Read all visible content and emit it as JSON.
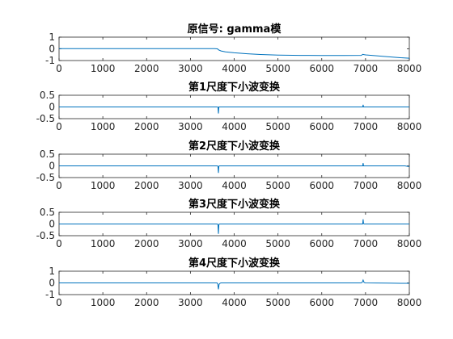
{
  "figure": {
    "line_color": "#0072BD",
    "background": "#ffffff"
  },
  "chart_data": [
    {
      "type": "line",
      "title": "原信号: gamma模",
      "xlim": [
        0,
        8000
      ],
      "ylim": [
        -1,
        1
      ],
      "xticks": [
        0,
        1000,
        2000,
        3000,
        4000,
        5000,
        6000,
        7000,
        8000
      ],
      "yticks": [
        -1,
        0,
        1
      ],
      "ytick_labels": [
        "-1",
        "0",
        "1"
      ],
      "grid": false,
      "series": [
        {
          "x": [
            1,
            500,
            1000,
            2000,
            3000,
            3550,
            3620,
            3640,
            3700,
            3800,
            4000,
            4300,
            4600,
            5000,
            5500,
            6000,
            6500,
            6900,
            6940,
            6960,
            7000,
            7200,
            7500,
            7800,
            8000
          ],
          "y": [
            0.02,
            0.02,
            0.02,
            0.02,
            0.02,
            0.02,
            0.0,
            -0.08,
            -0.18,
            -0.26,
            -0.34,
            -0.42,
            -0.48,
            -0.53,
            -0.56,
            -0.57,
            -0.57,
            -0.56,
            -0.47,
            -0.49,
            -0.52,
            -0.58,
            -0.67,
            -0.76,
            -0.8
          ]
        }
      ]
    },
    {
      "type": "line",
      "title": "第1尺度下小波变换",
      "xlim": [
        0,
        8000
      ],
      "ylim": [
        -0.5,
        0.5
      ],
      "xticks": [
        0,
        1000,
        2000,
        3000,
        4000,
        5000,
        6000,
        7000,
        8000
      ],
      "yticks": [
        -0.5,
        0,
        0.5
      ],
      "ytick_labels": [
        "-0.5",
        "0",
        "0.5"
      ],
      "grid": false,
      "series": [
        {
          "x": [
            1,
            3600,
            3620,
            3630,
            3640,
            3650,
            3660,
            6900,
            6935,
            6945,
            6955,
            6970,
            8000
          ],
          "y": [
            0,
            0,
            0,
            -0.02,
            -0.28,
            0,
            0,
            0,
            0,
            0.09,
            0,
            0,
            0
          ]
        }
      ]
    },
    {
      "type": "line",
      "title": "第2尺度下小波变换",
      "xlim": [
        0,
        8000
      ],
      "ylim": [
        -0.5,
        0.5
      ],
      "xticks": [
        0,
        1000,
        2000,
        3000,
        4000,
        5000,
        6000,
        7000,
        8000
      ],
      "yticks": [
        -0.5,
        0,
        0.5
      ],
      "ytick_labels": [
        "-0.5",
        "0",
        "0.5"
      ],
      "grid": false,
      "series": [
        {
          "x": [
            1,
            3600,
            3620,
            3630,
            3640,
            3650,
            3660,
            6900,
            6935,
            6945,
            6955,
            6970,
            7900,
            7960,
            8000
          ],
          "y": [
            0,
            0,
            0,
            -0.03,
            -0.3,
            -0.02,
            0,
            0,
            0,
            0.12,
            0,
            0,
            0,
            -0.02,
            -0.03
          ]
        }
      ]
    },
    {
      "type": "line",
      "title": "第3尺度下小波变换",
      "xlim": [
        0,
        8000
      ],
      "ylim": [
        -0.5,
        0.5
      ],
      "xticks": [
        0,
        1000,
        2000,
        3000,
        4000,
        5000,
        6000,
        7000,
        8000
      ],
      "yticks": [
        -0.5,
        0,
        0.5
      ],
      "ytick_labels": [
        "-0.5",
        "0",
        "0.5"
      ],
      "grid": false,
      "series": [
        {
          "x": [
            1,
            3600,
            3620,
            3630,
            3640,
            3650,
            3660,
            6900,
            6935,
            6945,
            6955,
            6970,
            8000
          ],
          "y": [
            0,
            0,
            0,
            -0.05,
            -0.42,
            -0.03,
            0,
            0,
            0,
            0.2,
            0.02,
            0,
            0
          ]
        }
      ]
    },
    {
      "type": "line",
      "title": "第4尺度下小波变换",
      "xlim": [
        0,
        8000
      ],
      "ylim": [
        -1,
        1
      ],
      "xticks": [
        0,
        1000,
        2000,
        3000,
        4000,
        5000,
        6000,
        7000,
        8000
      ],
      "yticks": [
        -1,
        0,
        1
      ],
      "ytick_labels": [
        "-1",
        "0",
        "1"
      ],
      "grid": false,
      "series": [
        {
          "x": [
            1,
            3590,
            3610,
            3625,
            3640,
            3655,
            3680,
            3700,
            6900,
            6925,
            6945,
            6965,
            6990,
            7500,
            7800,
            8000
          ],
          "y": [
            0,
            0,
            0,
            -0.1,
            -0.55,
            -0.12,
            -0.02,
            0,
            0,
            0.05,
            0.25,
            0.05,
            0,
            -0.02,
            -0.03,
            -0.03
          ]
        }
      ]
    }
  ]
}
